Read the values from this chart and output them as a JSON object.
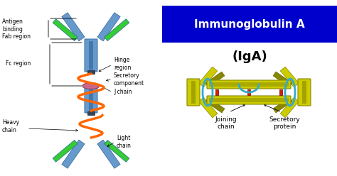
{
  "title1": "Immunoglobulin A",
  "title2": "(IgA)",
  "title_bg": "#0000cc",
  "title_text_color": "#ffffff",
  "subtitle_color": "#000000",
  "bg_color": "#ffffff",
  "labels_left": {
    "antigen": "Antigen\nbinding\nFab region",
    "fc": "Fc region",
    "heavy": "Heavy\nchain",
    "hinge": "Hinge\nregion",
    "secretory": "Secretory\ncomponent",
    "jchain": "J chain",
    "light": "Light\nchain"
  },
  "labels_bottom": {
    "joining": "Joining\nchain",
    "secretory": "Secretory\nprotein"
  },
  "colors": {
    "heavy_chain_blue": "#6699cc",
    "heavy_chain_dark": "#4477aa",
    "light_chain_green": "#33cc33",
    "orange_wrap": "#ff6600",
    "pink_disk": "#cc6688",
    "yellow_fab": "#cccc00",
    "cyan_wrap": "#33aacc",
    "red_connector": "#cc2200"
  }
}
